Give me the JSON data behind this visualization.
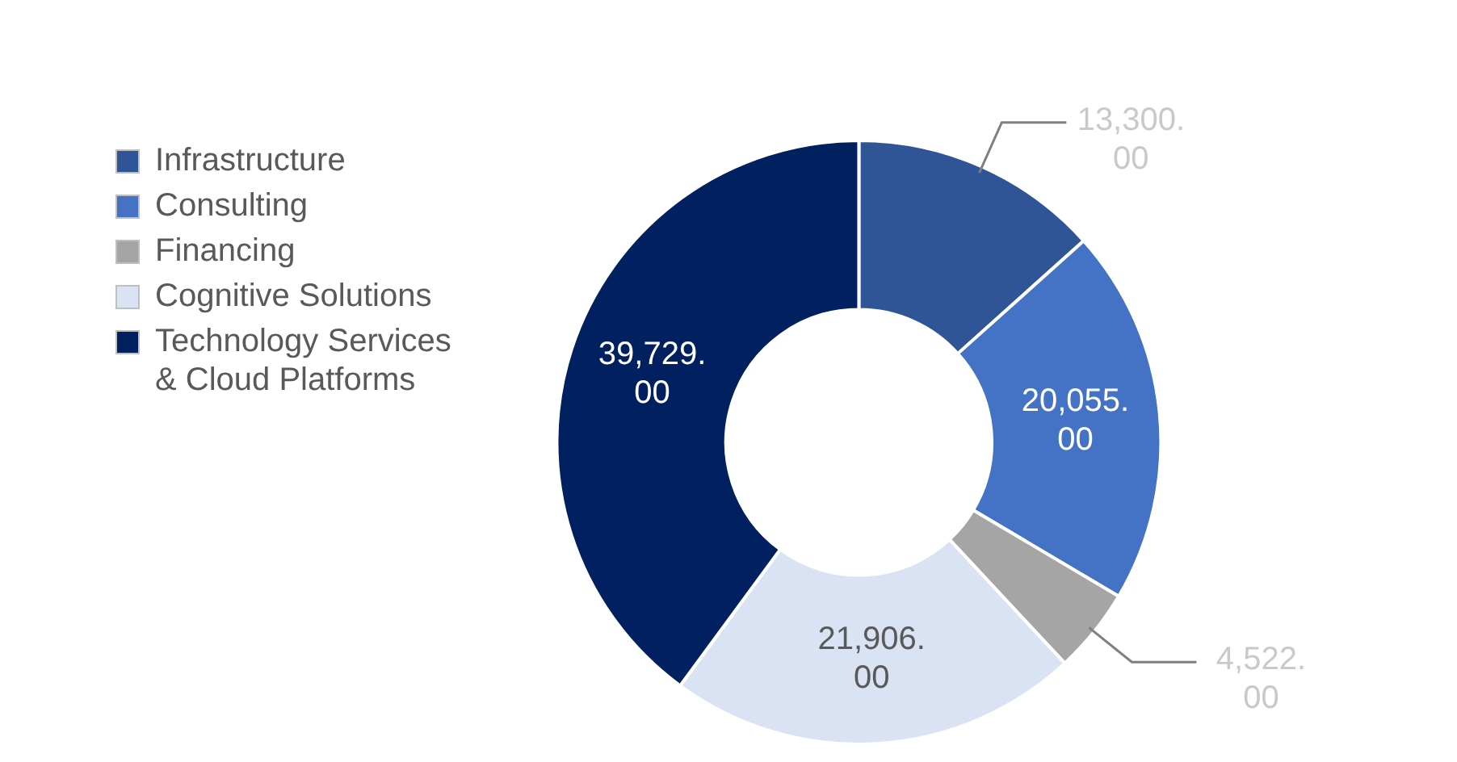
{
  "chart_data": {
    "type": "donut",
    "categories": [
      "Infrastructure",
      "Consulting",
      "Financing",
      "Cognitive Solutions",
      "Technology Services & Cloud Platforms"
    ],
    "values": [
      13300,
      20055,
      4522,
      21906,
      39729
    ],
    "colors": [
      "#2f5597",
      "#4472c4",
      "#a5a5a5",
      "#dae3f3",
      "#002060"
    ],
    "value_labels": [
      "13,300.00",
      "20,055.00",
      "4,522.00",
      "21,906.00",
      "39,729.00"
    ],
    "legend": "left"
  }
}
